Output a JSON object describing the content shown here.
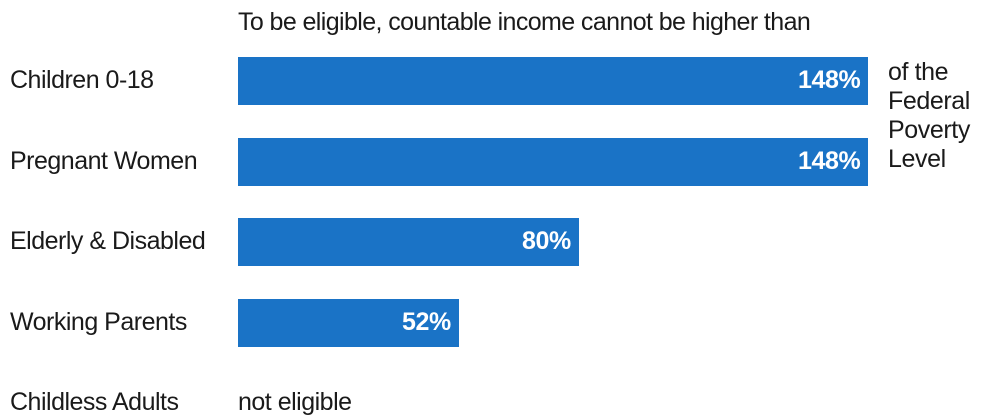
{
  "chart_data": {
    "type": "bar",
    "orientation": "horizontal",
    "title": "To be eligible, countable income cannot be higher than",
    "categories": [
      "Children 0-18",
      "Pregnant Women",
      "Elderly & Disabled",
      "Working Parents",
      "Childless Adults"
    ],
    "values": [
      148,
      148,
      80,
      52,
      null
    ],
    "value_labels": [
      "148%",
      "148%",
      "80%",
      "52%",
      "not eligible"
    ],
    "unit_note_lines": [
      "of the",
      "Federal",
      "Poverty",
      "Level"
    ],
    "xlim": [
      0,
      148
    ],
    "grid": false,
    "bar_color": "#1a73c6"
  }
}
